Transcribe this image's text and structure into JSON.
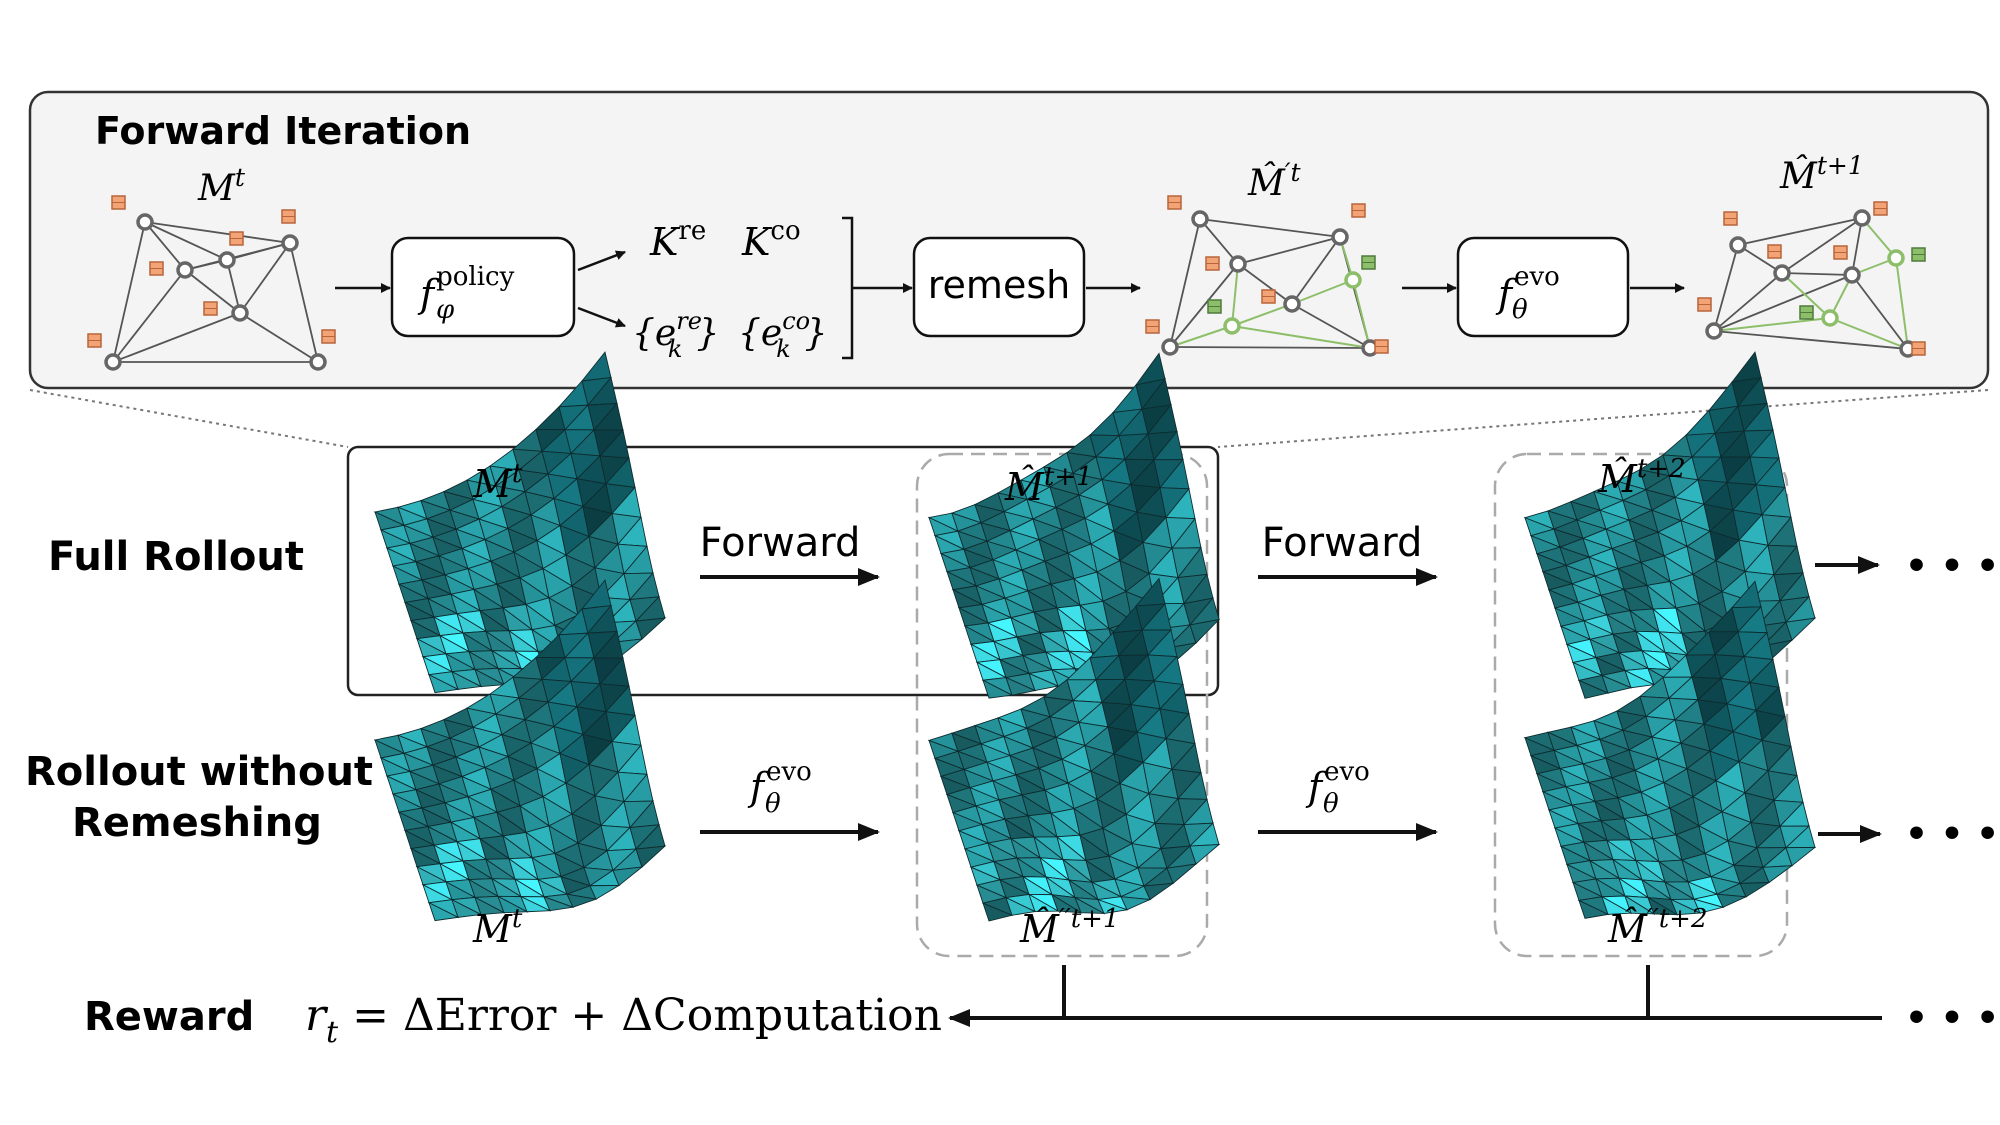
{
  "forward_iteration": {
    "title": "Forward Iteration",
    "mesh_labels": {
      "m_t": {
        "base": "M",
        "sup": "t"
      },
      "m_hat_prime_t": {
        "base": "M̂",
        "sup": "′t"
      },
      "m_hat_t1": {
        "base": "M̂",
        "sup": "t+1"
      }
    },
    "policy_box": {
      "base": "f",
      "sup": "policy",
      "sub": "φ"
    },
    "policy_outputs": {
      "k_re": {
        "base": "K",
        "sup": "re"
      },
      "k_co": {
        "base": "K",
        "sup": "co"
      },
      "e_re": {
        "open": "{e",
        "sup": "re",
        "sub": "k",
        "close": "}"
      },
      "e_co": {
        "open": "{e",
        "sup": "co",
        "sub": "k",
        "close": "}"
      }
    },
    "remesh_label": "remesh",
    "evo_box": {
      "base": "f",
      "sup": "evo",
      "sub": "θ"
    }
  },
  "full_rollout": {
    "label": "Full Rollout",
    "mesh_0": {
      "base": "M",
      "sup": "t"
    },
    "mesh_1": {
      "base": "M̂",
      "sup": "t+1"
    },
    "mesh_2": {
      "base": "M̂",
      "sup": "t+2"
    },
    "arrow_1_label": "Forward",
    "arrow_2_label": "Forward",
    "ellipsis": "• • •"
  },
  "rollout_without_remeshing": {
    "label_line1": "Rollout without",
    "label_line2": "Remeshing",
    "mesh_0": {
      "base": "M",
      "sup": "t"
    },
    "mesh_1": {
      "base": "M̂",
      "sup": "′′t+1"
    },
    "mesh_2": {
      "base": "M̂",
      "sup": "′′t+2"
    },
    "arrow_1": {
      "base": "f",
      "sup": "evo",
      "sub": "θ"
    },
    "arrow_2": {
      "base": "f",
      "sup": "evo",
      "sub": "θ"
    },
    "ellipsis": "• • •"
  },
  "reward": {
    "label": "Reward",
    "formula_lhs": "r",
    "formula_sub": "t",
    "formula_rhs": " = ΔError + ΔComputation",
    "ellipsis": "• • •"
  },
  "colors": {
    "mesh_teal": "#2aa5ad",
    "mesh_light": "#3fe0ea",
    "mesh_dark": "#14707a",
    "node_orange": "#f2a477",
    "node_green": "#8dbf6a",
    "panel_bg": "#f4f4f4"
  }
}
